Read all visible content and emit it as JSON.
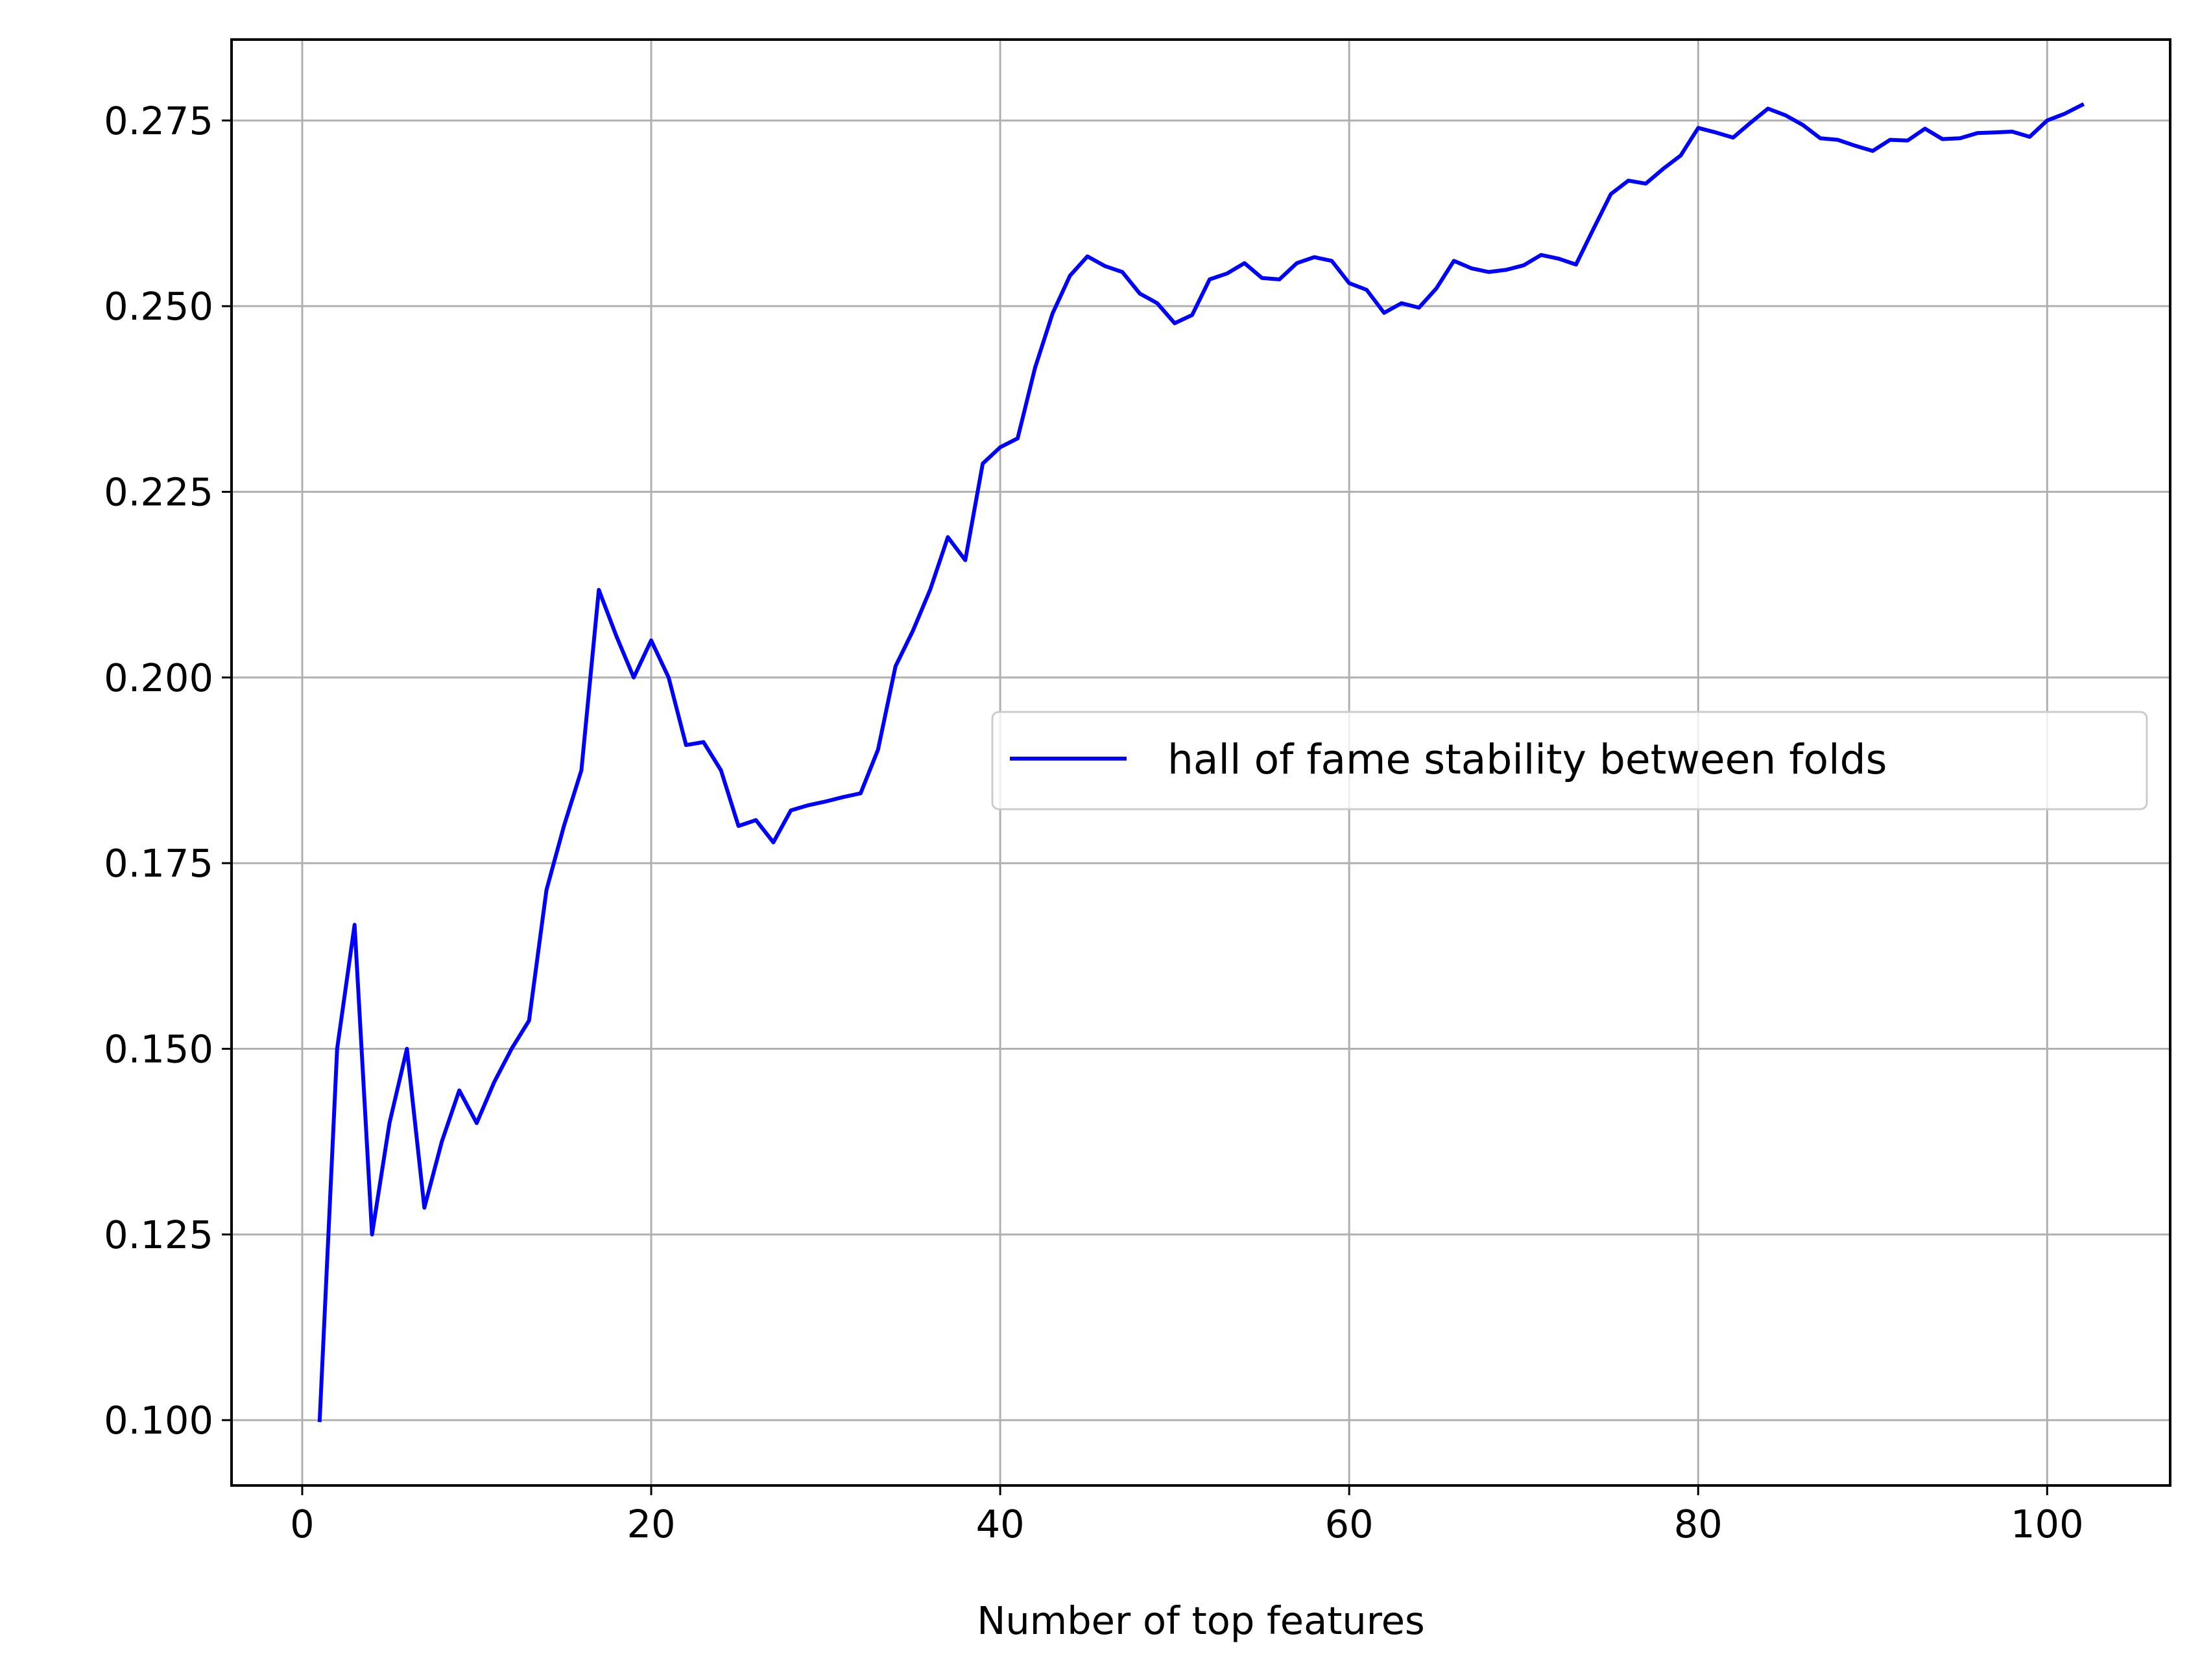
{
  "chart_data": {
    "type": "line",
    "title": "",
    "xlabel": "Number of top features",
    "ylabel": "",
    "xlim": [
      -4.05,
      107.05
    ],
    "ylim": [
      0.0912,
      0.2859
    ],
    "xticks": [
      0,
      20,
      40,
      60,
      80,
      100
    ],
    "xtick_labels": [
      "0",
      "20",
      "40",
      "60",
      "80",
      "100"
    ],
    "yticks": [
      0.1,
      0.125,
      0.15,
      0.175,
      0.2,
      0.225,
      0.25,
      0.275
    ],
    "ytick_labels": [
      "0.100",
      "0.125",
      "0.150",
      "0.175",
      "0.200",
      "0.225",
      "0.250",
      "0.275"
    ],
    "grid": true,
    "legend_position": "center-right",
    "series": [
      {
        "name": "hall of fame stability between folds",
        "color": "#0000ff",
        "x": [
          1,
          2,
          3,
          4,
          5,
          6,
          7,
          8,
          9,
          10,
          11,
          12,
          13,
          14,
          15,
          16,
          17,
          18,
          19,
          20,
          21,
          22,
          23,
          24,
          25,
          26,
          27,
          28,
          29,
          30,
          31,
          32,
          33,
          34,
          35,
          36,
          37,
          38,
          39,
          40,
          41,
          42,
          43,
          44,
          45,
          46,
          47,
          48,
          49,
          50,
          51,
          52,
          53,
          54,
          55,
          56,
          57,
          58,
          59,
          60,
          61,
          62,
          63,
          64,
          65,
          66,
          67,
          68,
          69,
          70,
          71,
          72,
          73,
          74,
          75,
          76,
          77,
          78,
          79,
          80,
          81,
          82,
          83,
          84,
          85,
          86,
          87,
          88,
          89,
          90,
          91,
          92,
          93,
          94,
          95,
          96,
          97,
          98,
          99,
          100,
          101,
          102
        ],
        "y": [
          0.1,
          0.15,
          0.1667,
          0.125,
          0.14,
          0.15,
          0.1286,
          0.1375,
          0.1444,
          0.14,
          0.1455,
          0.15,
          0.1538,
          0.1714,
          0.18,
          0.1875,
          0.2118,
          0.2056,
          0.2,
          0.205,
          0.2,
          0.1909,
          0.1913,
          0.1875,
          0.18,
          0.1808,
          0.1778,
          0.1821,
          0.1828,
          0.1833,
          0.1839,
          0.1844,
          0.1903,
          0.2015,
          0.2063,
          0.2119,
          0.2189,
          0.2158,
          0.2288,
          0.231,
          0.2322,
          0.2417,
          0.249,
          0.2541,
          0.2567,
          0.2554,
          0.2546,
          0.2517,
          0.2504,
          0.2477,
          0.2488,
          0.2536,
          0.2544,
          0.2558,
          0.2538,
          0.2536,
          0.2558,
          0.2566,
          0.2561,
          0.2531,
          0.2522,
          0.2491,
          0.2504,
          0.2498,
          0.2524,
          0.2561,
          0.2551,
          0.2546,
          0.2549,
          0.2555,
          0.2569,
          0.2564,
          0.2556,
          0.2604,
          0.2651,
          0.2669,
          0.2665,
          0.2685,
          0.2703,
          0.274,
          0.2734,
          0.2727,
          0.2747,
          0.2766,
          0.2757,
          0.2744,
          0.2726,
          0.2724,
          0.2716,
          0.2709,
          0.2724,
          0.2723,
          0.2739,
          0.2725,
          0.2726,
          0.2733,
          0.2734,
          0.2735,
          0.2728,
          0.275,
          0.2759,
          0.2771
        ]
      }
    ]
  }
}
